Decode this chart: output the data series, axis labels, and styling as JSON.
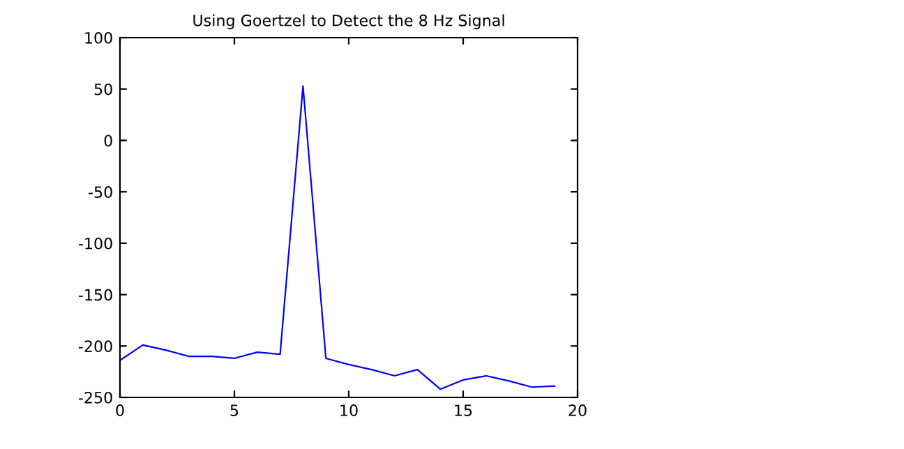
{
  "chart_data": {
    "type": "line",
    "title": "Using Goertzel to Detect the 8 Hz Signal",
    "x": [
      0,
      1,
      2,
      3,
      4,
      5,
      6,
      7,
      8,
      9,
      10,
      11,
      12,
      13,
      14,
      15,
      16,
      17,
      18,
      19
    ],
    "series": [
      {
        "color": "#0000ff",
        "values": [
          -214,
          -199,
          -204,
          -210,
          -210,
          -212,
          -206,
          -208,
          53,
          -212,
          -218,
          -223,
          -229,
          -223,
          -242,
          -233,
          -229,
          -234,
          -240,
          -239
        ]
      }
    ],
    "xlim": [
      0,
      20
    ],
    "ylim": [
      -250,
      100
    ],
    "xticks": [
      0,
      5,
      10,
      15,
      20
    ],
    "yticks": [
      -250,
      -200,
      -150,
      -100,
      -50,
      0,
      50,
      100
    ],
    "grid": false,
    "legend": false,
    "marker": "none",
    "line_style": "solid"
  }
}
